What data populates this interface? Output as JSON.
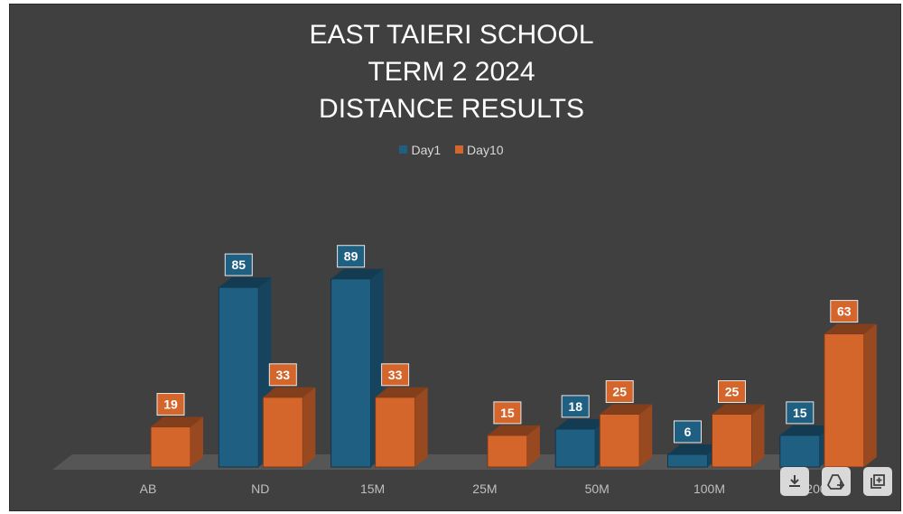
{
  "chart_data": {
    "type": "bar",
    "title_lines": [
      "EAST TAIERI SCHOOL",
      "TERM 2 2024",
      "DISTANCE RESULTS"
    ],
    "categories": [
      "AB",
      "ND",
      "15M",
      "25M",
      "50M",
      "100M",
      "200M"
    ],
    "series": [
      {
        "name": "Day1",
        "values": [
          null,
          85,
          89,
          null,
          18,
          6,
          15
        ]
      },
      {
        "name": "Day10",
        "values": [
          19,
          33,
          33,
          15,
          25,
          25,
          63
        ]
      }
    ],
    "ylim": [
      0,
      100
    ],
    "grid": false,
    "legend": "top",
    "data_labels": true,
    "style": "3d-column"
  },
  "colors": {
    "background": "#404040",
    "day1": "#1f5f82",
    "day10": "#d4652b",
    "text": "#ffffff",
    "muted_text": "#bfbfbf"
  },
  "toolbar": {
    "icons": [
      "download-icon",
      "drive-upload-icon",
      "add-to-library-icon"
    ]
  }
}
